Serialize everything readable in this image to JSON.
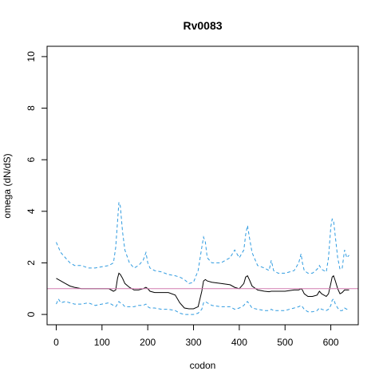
{
  "chart_data": {
    "type": "line",
    "title": "Rv0083",
    "xlabel": "codon",
    "ylabel": "omega (dN/dS)",
    "xlim": [
      -20,
      660
    ],
    "ylim": [
      -0.4,
      10.4
    ],
    "x_ticks": [
      0,
      100,
      200,
      300,
      400,
      500,
      600
    ],
    "y_ticks": [
      0,
      2,
      4,
      6,
      8,
      10
    ],
    "reference_line": {
      "y": 1,
      "color": "#d27bb0"
    },
    "colors": {
      "estimate": "#000000",
      "bounds": "#2f9be0"
    },
    "series": [
      {
        "role": "upper",
        "style": "dashed",
        "x": [
          0,
          5,
          10,
          20,
          30,
          40,
          55,
          70,
          85,
          100,
          115,
          125,
          130,
          134,
          137,
          140,
          145,
          150,
          160,
          170,
          180,
          190,
          196,
          200,
          205,
          215,
          230,
          245,
          260,
          270,
          280,
          290,
          300,
          310,
          318,
          322,
          326,
          330,
          340,
          360,
          380,
          390,
          400,
          410,
          414,
          418,
          422,
          428,
          440,
          455,
          465,
          470,
          475,
          485,
          500,
          520,
          530,
          535,
          538,
          542,
          550,
          560,
          570,
          575,
          580,
          590,
          595,
          600,
          603,
          606,
          610,
          615,
          620,
          625,
          630,
          635,
          640
        ],
        "y": [
          2.8,
          2.6,
          2.4,
          2.2,
          2.0,
          1.9,
          1.9,
          1.8,
          1.8,
          1.85,
          1.9,
          2.0,
          2.6,
          3.6,
          4.35,
          4.2,
          3.2,
          2.5,
          2.0,
          1.8,
          1.9,
          2.1,
          2.4,
          2.0,
          1.8,
          1.7,
          1.65,
          1.55,
          1.5,
          1.45,
          1.35,
          1.2,
          1.25,
          1.7,
          2.6,
          3.0,
          2.8,
          2.2,
          2.0,
          2.0,
          2.2,
          2.5,
          2.2,
          2.5,
          3.1,
          3.45,
          3.0,
          2.4,
          1.9,
          1.8,
          1.7,
          2.1,
          1.7,
          1.6,
          1.6,
          1.7,
          2.0,
          2.35,
          2.0,
          1.7,
          1.6,
          1.6,
          1.75,
          1.9,
          1.75,
          1.65,
          2.2,
          3.4,
          3.7,
          3.65,
          3.0,
          2.2,
          1.75,
          1.8,
          2.5,
          2.2,
          2.3
        ]
      },
      {
        "role": "estimate",
        "style": "solid",
        "x": [
          0,
          5,
          10,
          20,
          30,
          40,
          55,
          70,
          85,
          100,
          115,
          125,
          130,
          134,
          137,
          140,
          145,
          150,
          160,
          170,
          180,
          190,
          196,
          200,
          205,
          215,
          230,
          245,
          260,
          270,
          280,
          290,
          300,
          310,
          318,
          322,
          326,
          330,
          340,
          360,
          380,
          390,
          400,
          410,
          414,
          418,
          422,
          428,
          440,
          455,
          465,
          470,
          475,
          485,
          500,
          520,
          530,
          535,
          538,
          542,
          550,
          560,
          570,
          575,
          580,
          590,
          595,
          600,
          603,
          606,
          610,
          615,
          620,
          625,
          630,
          635,
          640
        ],
        "y": [
          1.4,
          1.35,
          1.3,
          1.2,
          1.1,
          1.05,
          1.0,
          1.0,
          1.0,
          1.0,
          1.0,
          0.9,
          0.95,
          1.4,
          1.6,
          1.55,
          1.4,
          1.2,
          1.05,
          0.95,
          0.95,
          1.0,
          1.05,
          1.0,
          0.9,
          0.85,
          0.85,
          0.85,
          0.75,
          0.45,
          0.25,
          0.22,
          0.22,
          0.3,
          0.9,
          1.3,
          1.35,
          1.3,
          1.25,
          1.2,
          1.15,
          1.05,
          1.0,
          1.2,
          1.45,
          1.5,
          1.35,
          1.1,
          0.95,
          0.9,
          0.88,
          0.9,
          0.9,
          0.9,
          0.9,
          0.95,
          0.95,
          1.0,
          0.95,
          0.8,
          0.7,
          0.7,
          0.75,
          0.9,
          0.8,
          0.7,
          0.8,
          1.2,
          1.45,
          1.5,
          1.3,
          1.0,
          0.8,
          0.85,
          0.95,
          0.95,
          0.95
        ]
      },
      {
        "role": "lower",
        "style": "dashed",
        "x": [
          0,
          5,
          10,
          20,
          30,
          40,
          55,
          70,
          85,
          100,
          115,
          125,
          130,
          134,
          137,
          140,
          145,
          150,
          160,
          170,
          180,
          190,
          196,
          200,
          205,
          215,
          230,
          245,
          260,
          270,
          280,
          290,
          300,
          310,
          318,
          322,
          326,
          330,
          340,
          360,
          380,
          390,
          400,
          410,
          414,
          418,
          422,
          428,
          440,
          455,
          465,
          470,
          475,
          485,
          500,
          520,
          530,
          535,
          538,
          542,
          550,
          560,
          570,
          575,
          580,
          590,
          595,
          600,
          603,
          606,
          610,
          615,
          620,
          625,
          630,
          635,
          640
        ],
        "y": [
          0.4,
          0.6,
          0.45,
          0.5,
          0.45,
          0.4,
          0.4,
          0.45,
          0.35,
          0.4,
          0.45,
          0.35,
          0.3,
          0.4,
          0.5,
          0.45,
          0.4,
          0.3,
          0.3,
          0.3,
          0.35,
          0.35,
          0.4,
          0.3,
          0.25,
          0.25,
          0.2,
          0.2,
          0.15,
          0.05,
          0.0,
          0.0,
          0.0,
          0.05,
          0.2,
          0.45,
          0.5,
          0.45,
          0.35,
          0.3,
          0.3,
          0.2,
          0.25,
          0.35,
          0.45,
          0.5,
          0.4,
          0.25,
          0.2,
          0.15,
          0.15,
          0.2,
          0.15,
          0.15,
          0.15,
          0.25,
          0.3,
          0.35,
          0.3,
          0.2,
          0.1,
          0.1,
          0.15,
          0.25,
          0.2,
          0.15,
          0.2,
          0.35,
          0.55,
          0.6,
          0.4,
          0.25,
          0.15,
          0.15,
          0.25,
          0.2,
          0.2
        ]
      }
    ]
  }
}
